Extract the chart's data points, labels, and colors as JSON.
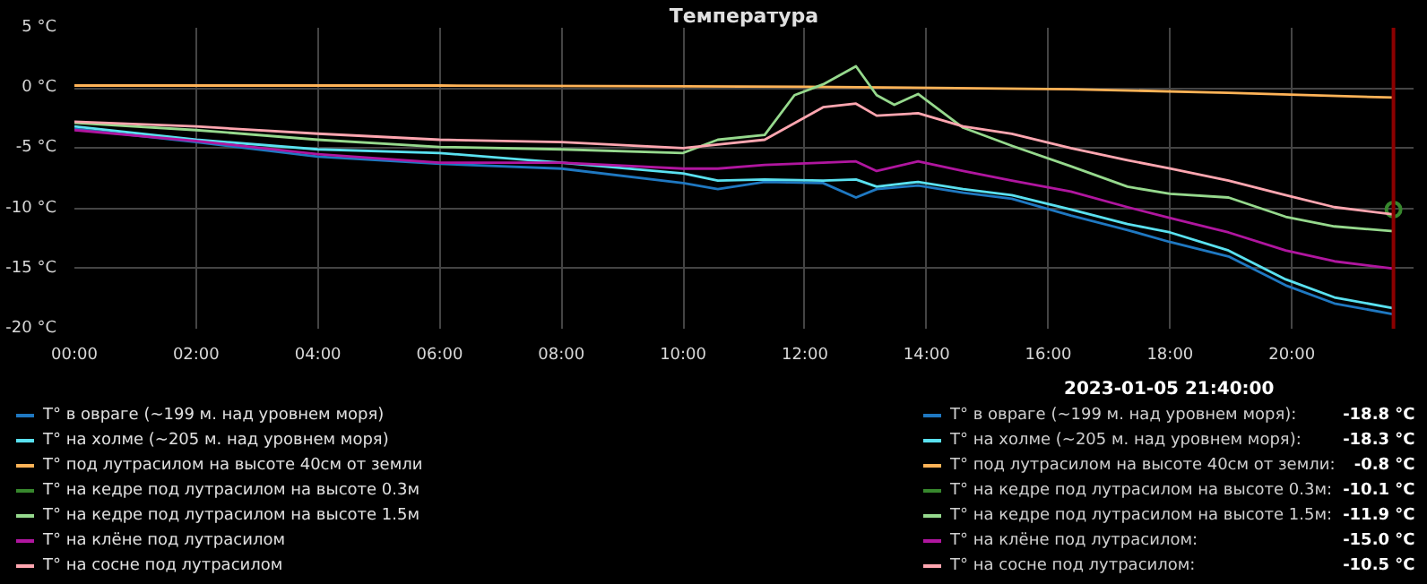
{
  "chart_data": {
    "type": "line",
    "title": "Температура",
    "xlim": [
      0,
      22
    ],
    "xticks": [
      {
        "value": 0,
        "label": "00:00"
      },
      {
        "value": 2,
        "label": "02:00"
      },
      {
        "value": 4,
        "label": "04:00"
      },
      {
        "value": 6,
        "label": "06:00"
      },
      {
        "value": 8,
        "label": "08:00"
      },
      {
        "value": 10,
        "label": "10:00"
      },
      {
        "value": 12,
        "label": "12:00"
      },
      {
        "value": 14,
        "label": "14:00"
      },
      {
        "value": 16,
        "label": "16:00"
      },
      {
        "value": 18,
        "label": "18:00"
      },
      {
        "value": 20,
        "label": "20:00"
      }
    ],
    "ylim": [
      -20,
      5
    ],
    "yticks": [
      {
        "value": -20,
        "label": "-20 °C"
      },
      {
        "value": -15,
        "label": "-15 °C"
      },
      {
        "value": -10,
        "label": "-10 °C"
      },
      {
        "value": -5,
        "label": "-5 °C"
      },
      {
        "value": 0,
        "label": "0 °C"
      },
      {
        "value": 5,
        "label": "5 °C"
      }
    ],
    "grid": true,
    "legend": "bottom left",
    "ref_lines": [
      {
        "axis": "x",
        "value": 21.67,
        "color": "#8b0000"
      }
    ],
    "series": [
      {
        "name": "T° в овраге (~199 м. над уровнем моря)",
        "color": "#1f78c1",
        "x": [
          0,
          2,
          4,
          6,
          8,
          10,
          10.57,
          11.34,
          12.3,
          12.84,
          13.18,
          13.86,
          14.6,
          15.4,
          16.37,
          17.3,
          18.0,
          18.96,
          19.9,
          20.7,
          21.67
        ],
        "values": [
          -3.4,
          -4.5,
          -5.7,
          -6.3,
          -6.7,
          -7.9,
          -8.4,
          -7.8,
          -7.9,
          -9.1,
          -8.4,
          -8.1,
          -8.7,
          -9.2,
          -10.6,
          -11.8,
          -12.8,
          -14.0,
          -16.4,
          -17.9,
          -18.8
        ]
      },
      {
        "name": "T° на холме (~205 м. над уровнем моря)",
        "color": "#5ae1f0",
        "x": [
          0,
          2,
          4,
          6,
          8,
          10,
          10.57,
          11.34,
          12.3,
          12.84,
          13.18,
          13.86,
          14.6,
          15.4,
          16.37,
          17.3,
          18.0,
          18.96,
          19.9,
          20.7,
          21.67
        ],
        "values": [
          -3.2,
          -4.3,
          -5.1,
          -5.4,
          -6.2,
          -7.1,
          -7.7,
          -7.6,
          -7.7,
          -7.6,
          -8.2,
          -7.8,
          -8.4,
          -8.9,
          -10.1,
          -11.3,
          -12.0,
          -13.5,
          -15.9,
          -17.4,
          -18.3
        ]
      },
      {
        "name": "T° под лутрасилом на высоте 40см от земли",
        "color": "#ffb357",
        "x": [
          0,
          6,
          12,
          16.37,
          18.96,
          21.67
        ],
        "values": [
          0.2,
          0.2,
          0.1,
          -0.1,
          -0.4,
          -0.8
        ]
      },
      {
        "name": "T° на кедре под лутрасилом на высоте 0.3м",
        "color": "#37872d",
        "marker": "circle",
        "x": [
          21.67
        ],
        "values": [
          -10.1
        ]
      },
      {
        "name": "T° на кедре под лутрасилом на высоте 1.5м",
        "color": "#96d98d",
        "x": [
          0,
          2,
          4,
          6,
          8,
          10,
          10.57,
          11.34,
          11.83,
          12.3,
          12.84,
          13.18,
          13.47,
          13.86,
          14.6,
          15.4,
          16.37,
          17.3,
          18.0,
          18.96,
          19.9,
          20.7,
          21.67
        ],
        "values": [
          -2.9,
          -3.5,
          -4.3,
          -4.9,
          -5.1,
          -5.4,
          -4.3,
          -3.9,
          -0.6,
          0.3,
          1.8,
          -0.6,
          -1.4,
          -0.5,
          -3.3,
          -4.8,
          -6.5,
          -8.2,
          -8.8,
          -9.1,
          -10.7,
          -11.5,
          -11.9
        ]
      },
      {
        "name": "T° на клёне под лутрасилом",
        "color": "#b0169f",
        "x": [
          0,
          2,
          4,
          6,
          8,
          10,
          10.57,
          11.34,
          12.3,
          12.84,
          13.18,
          13.86,
          14.6,
          15.4,
          16.37,
          17.3,
          18.0,
          18.96,
          19.9,
          20.7,
          21.67
        ],
        "values": [
          -3.5,
          -4.4,
          -5.5,
          -6.2,
          -6.2,
          -6.7,
          -6.7,
          -6.4,
          -6.2,
          -6.1,
          -6.9,
          -6.1,
          -6.9,
          -7.7,
          -8.6,
          -9.9,
          -10.8,
          -12.0,
          -13.5,
          -14.4,
          -15.0
        ]
      },
      {
        "name": "T° на сосне под лутрасилом",
        "color": "#ffa6b0",
        "x": [
          0,
          2,
          4,
          6,
          8,
          10,
          10.57,
          11.34,
          12.3,
          12.84,
          13.18,
          13.86,
          14.6,
          15.4,
          16.37,
          17.3,
          18.0,
          18.96,
          19.9,
          20.7,
          21.67
        ],
        "values": [
          -2.8,
          -3.2,
          -3.8,
          -4.3,
          -4.5,
          -5.0,
          -4.7,
          -4.3,
          -1.6,
          -1.3,
          -2.3,
          -2.1,
          -3.2,
          -3.8,
          -5.0,
          -6.0,
          -6.7,
          -7.7,
          -8.9,
          -9.9,
          -10.5
        ]
      }
    ],
    "annotations": [
      "2023-01-05 21:40:00",
      "T° в овраге (~199 м. над уровнем моря):",
      "T° на холме (~205 м. над уровнем моря):",
      "T° под лутрасилом на высоте 40см от земли:",
      "T° на кедре под лутрасилом на высоте 0.3м:",
      "T° на кедре под лутрасилом на высоте 1.5м:",
      "T° на клёне под лутрасилом:",
      "T° на сосне под лутрасилом:",
      "-18.8 °C",
      "-18.3 °C",
      "-0.8 °C",
      "-10.1 °C",
      "-11.9 °C",
      "-15.0 °C",
      "-10.5 °C"
    ]
  }
}
